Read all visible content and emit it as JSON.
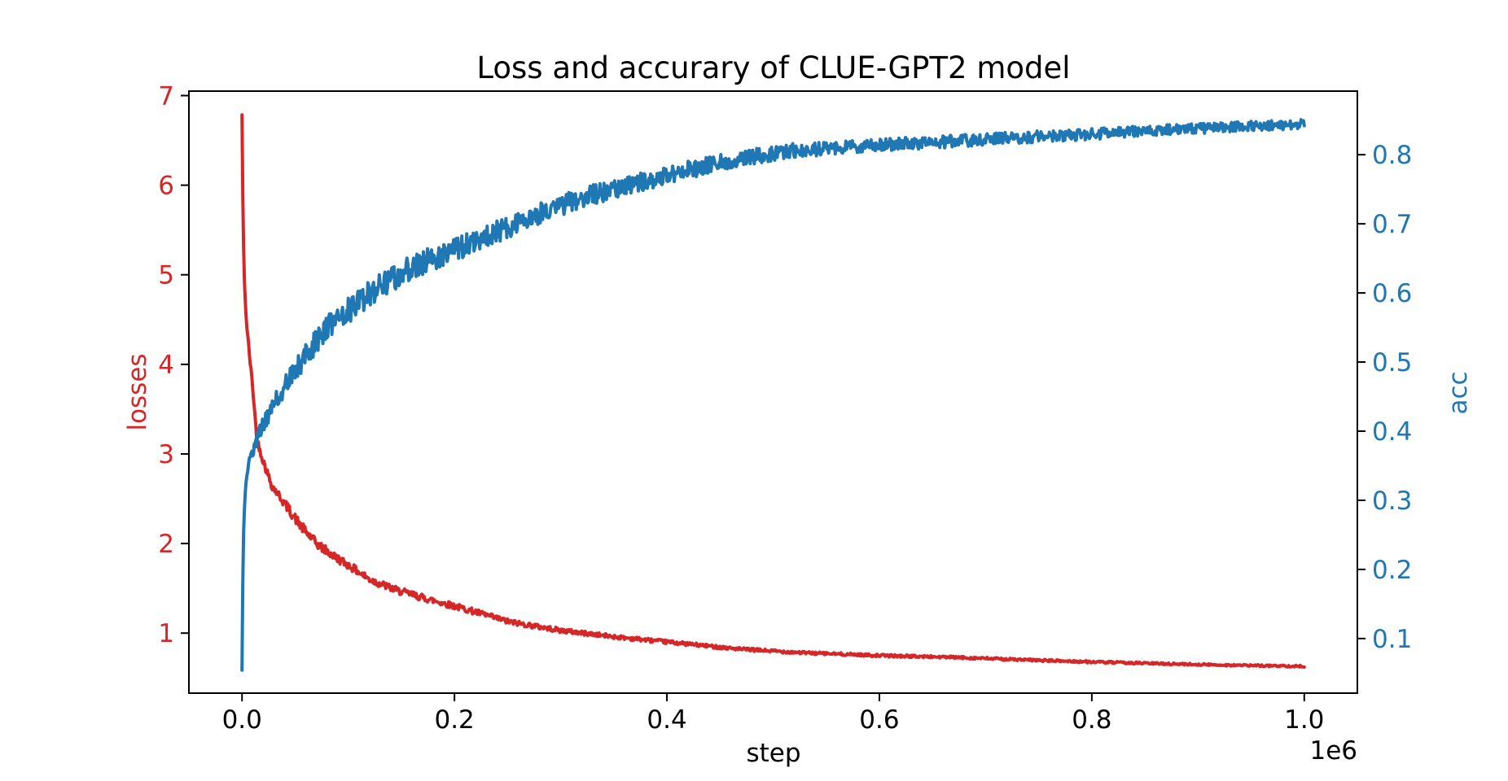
{
  "figure": {
    "title": "Loss and accurary of CLUE-GPT2 model",
    "xlabel": "step",
    "x_offset_label": "1e6",
    "ylabel_left": "losses",
    "ylabel_right": "acc",
    "colors": {
      "loss_line": "#d62728",
      "acc_line": "#1f77b4",
      "left_tick_labels": "#d62728",
      "right_tick_labels": "#1f77b4",
      "axis": "#000000",
      "background": "#ffffff"
    }
  },
  "chart_data": {
    "type": "line",
    "title": "Loss and accurary of CLUE-GPT2 model",
    "xlabel": "step",
    "x_unit_multiplier": "1e6",
    "grid": false,
    "legend": "none",
    "xlim": [
      -0.05,
      1.05
    ],
    "ylim_left": [
      0.33,
      7.05
    ],
    "ylim_right": [
      0.021,
      0.892
    ],
    "xticks": {
      "values": [
        0.0,
        0.2,
        0.4,
        0.6,
        0.8,
        1.0
      ],
      "labels": [
        "0.0",
        "0.2",
        "0.4",
        "0.6",
        "0.8",
        "1.0"
      ]
    },
    "yticks_left": {
      "values": [
        1,
        2,
        3,
        4,
        5,
        6,
        7
      ],
      "labels": [
        "1",
        "2",
        "3",
        "4",
        "5",
        "6",
        "7"
      ]
    },
    "yticks_right": {
      "values": [
        0.1,
        0.2,
        0.3,
        0.4,
        0.5,
        0.6,
        0.7,
        0.8
      ],
      "labels": [
        "0.1",
        "0.2",
        "0.3",
        "0.4",
        "0.5",
        "0.6",
        "0.7",
        "0.8"
      ]
    },
    "series": [
      {
        "name": "losses",
        "axis": "left",
        "color": "#d62728",
        "x": [
          0.0,
          0.001,
          0.002,
          0.004,
          0.007,
          0.01,
          0.014,
          0.02,
          0.028,
          0.04,
          0.055,
          0.07,
          0.085,
          0.1,
          0.12,
          0.145,
          0.175,
          0.21,
          0.25,
          0.3,
          0.35,
          0.41,
          0.47,
          0.53,
          0.6,
          0.67,
          0.74,
          0.81,
          0.88,
          0.94,
          1.0
        ],
        "y": [
          6.78,
          5.6,
          5.0,
          4.5,
          4.1,
          3.75,
          3.16,
          2.92,
          2.65,
          2.45,
          2.2,
          2.0,
          1.87,
          1.76,
          1.6,
          1.48,
          1.38,
          1.27,
          1.13,
          1.03,
          0.96,
          0.89,
          0.82,
          0.78,
          0.75,
          0.73,
          0.7,
          0.675,
          0.655,
          0.64,
          0.63
        ],
        "noise_amp": [
          [
            0.0,
            0.02
          ],
          [
            0.01,
            0.04
          ],
          [
            0.05,
            0.055
          ],
          [
            0.1,
            0.045
          ],
          [
            0.2,
            0.035
          ],
          [
            0.35,
            0.022
          ],
          [
            0.55,
            0.015
          ],
          [
            0.8,
            0.012
          ],
          [
            1.0,
            0.01
          ]
        ]
      },
      {
        "name": "acc",
        "axis": "right",
        "color": "#1f77b4",
        "x": [
          0.0,
          0.001,
          0.002,
          0.004,
          0.007,
          0.01,
          0.014,
          0.02,
          0.03,
          0.045,
          0.06,
          0.08,
          0.1,
          0.13,
          0.16,
          0.2,
          0.24,
          0.28,
          0.32,
          0.37,
          0.42,
          0.47,
          0.52,
          0.58,
          0.65,
          0.72,
          0.79,
          0.86,
          0.93,
          1.0
        ],
        "y": [
          0.056,
          0.22,
          0.285,
          0.325,
          0.355,
          0.372,
          0.388,
          0.41,
          0.44,
          0.475,
          0.51,
          0.55,
          0.575,
          0.61,
          0.638,
          0.663,
          0.688,
          0.715,
          0.738,
          0.758,
          0.778,
          0.795,
          0.806,
          0.812,
          0.818,
          0.824,
          0.829,
          0.835,
          0.84,
          0.844
        ],
        "noise_amp": [
          [
            0.0,
            0.004
          ],
          [
            0.01,
            0.01
          ],
          [
            0.05,
            0.016
          ],
          [
            0.1,
            0.019
          ],
          [
            0.2,
            0.017
          ],
          [
            0.35,
            0.014
          ],
          [
            0.55,
            0.01
          ],
          [
            0.8,
            0.008
          ],
          [
            1.0,
            0.007
          ]
        ]
      }
    ]
  }
}
